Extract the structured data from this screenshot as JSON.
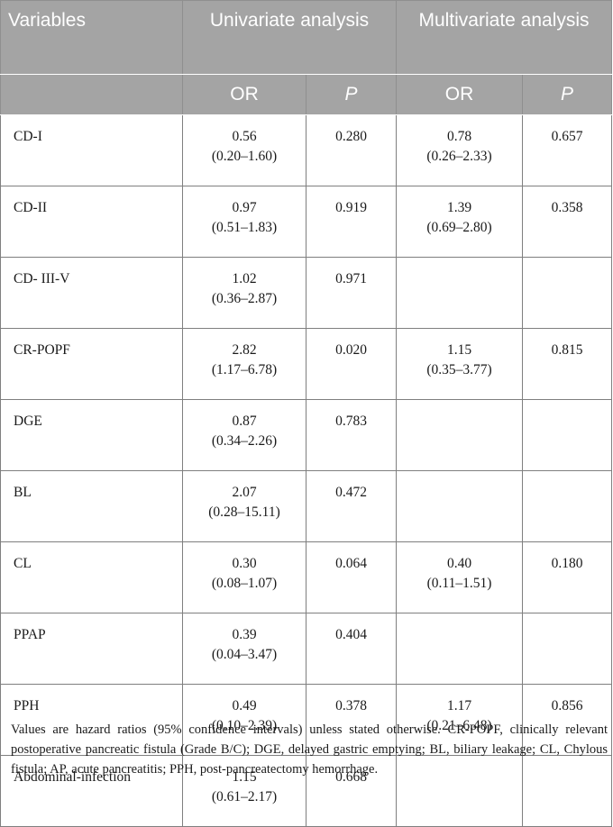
{
  "header": {
    "variables": "Variables",
    "univariate": "Univariate analysis",
    "multivariate": "Multivariate analysis",
    "or_label": "OR",
    "p_label": "P"
  },
  "rows": [
    {
      "variable": "CD-I",
      "uni_or": "0.56",
      "uni_ci": "(0.20–1.60)",
      "uni_p": "0.280",
      "multi_or": "0.78",
      "multi_ci": "(0.26–2.33)",
      "multi_p": "0.657"
    },
    {
      "variable": "CD-II",
      "uni_or": "0.97",
      "uni_ci": "(0.51–1.83)",
      "uni_p": "0.919",
      "multi_or": "1.39",
      "multi_ci": "(0.69–2.80)",
      "multi_p": "0.358"
    },
    {
      "variable": "CD- III-V",
      "uni_or": "1.02",
      "uni_ci": "(0.36–2.87)",
      "uni_p": "0.971",
      "multi_or": "",
      "multi_ci": "",
      "multi_p": ""
    },
    {
      "variable": "CR-POPF",
      "uni_or": "2.82",
      "uni_ci": "(1.17–6.78)",
      "uni_p": "0.020",
      "multi_or": "1.15",
      "multi_ci": "(0.35–3.77)",
      "multi_p": "0.815"
    },
    {
      "variable": "DGE",
      "uni_or": "0.87",
      "uni_ci": "(0.34–2.26)",
      "uni_p": "0.783",
      "multi_or": "",
      "multi_ci": "",
      "multi_p": ""
    },
    {
      "variable": "BL",
      "uni_or": "2.07",
      "uni_ci": "(0.28–15.11)",
      "uni_p": "0.472",
      "multi_or": "",
      "multi_ci": "",
      "multi_p": ""
    },
    {
      "variable": "CL",
      "uni_or": "0.30",
      "uni_ci": "(0.08–1.07)",
      "uni_p": "0.064",
      "multi_or": "0.40",
      "multi_ci": "(0.11–1.51)",
      "multi_p": "0.180"
    },
    {
      "variable": "PPAP",
      "uni_or": "0.39",
      "uni_ci": "(0.04–3.47)",
      "uni_p": "0.404",
      "multi_or": "",
      "multi_ci": "",
      "multi_p": ""
    },
    {
      "variable": "PPH",
      "uni_or": "0.49",
      "uni_ci": "(0.10–2.39)",
      "uni_p": "0.378",
      "multi_or": "1.17",
      "multi_ci": "(0.21–6.48)",
      "multi_p": "0.856"
    },
    {
      "variable": "Abdominal-infection",
      "uni_or": "1.15",
      "uni_ci": "(0.61–2.17)",
      "uni_p": "0.668",
      "multi_or": "",
      "multi_ci": "",
      "multi_p": ""
    }
  ],
  "footnote": "Values are hazard ratios (95% confidence intervals) unless stated otherwise. CR-POPF, clinically relevant postoperative pancreatic fistula (Grade B/C); DGE, delayed gastric emptying; BL, biliary leakage; CL, Chylous fistula; AP, acute pancreatitis; PPH, post-pancreatectomy hemorrhage."
}
